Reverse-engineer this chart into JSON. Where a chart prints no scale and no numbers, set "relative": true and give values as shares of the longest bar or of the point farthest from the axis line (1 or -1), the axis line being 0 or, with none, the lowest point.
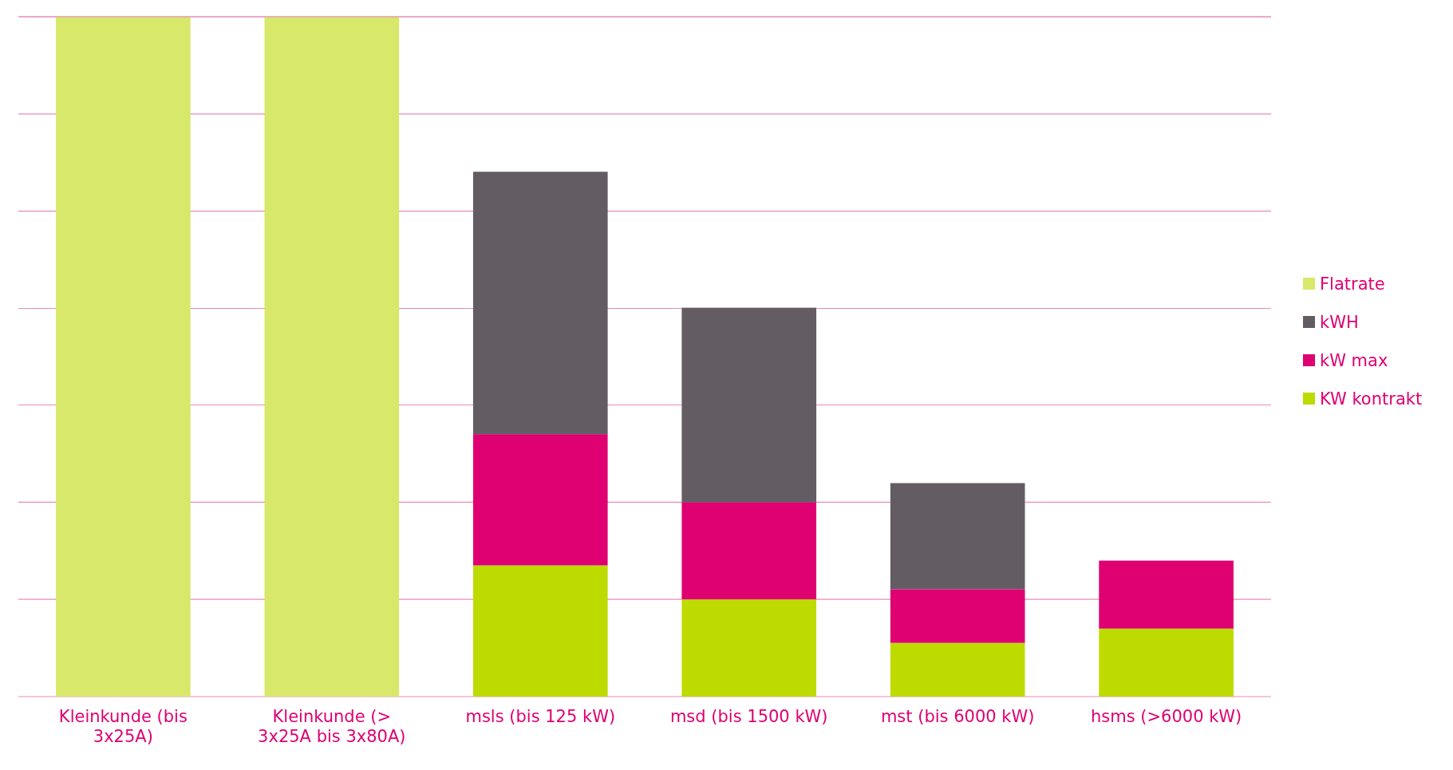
{
  "chart_data": {
    "type": "bar",
    "stacked": true,
    "relative": true,
    "legend": "right",
    "ref_lines": [
      {
        "axis": "y",
        "value": 0.143,
        "color": "#e98bb8"
      },
      {
        "axis": "y",
        "value": 0.286,
        "color": "#e98bb8"
      },
      {
        "axis": "y",
        "value": 0.429,
        "color": "#e98bb8"
      },
      {
        "axis": "y",
        "value": 0.571,
        "color": "#e98bb8"
      },
      {
        "axis": "y",
        "value": 0.714,
        "color": "#e98bb8"
      },
      {
        "axis": "y",
        "value": 0.857,
        "color": "#e98bb8"
      },
      {
        "axis": "y",
        "value": 1,
        "color": "#e98bb8"
      }
    ],
    "categories": [
      "Kleinkunde (bis 3x25A)",
      "Kleinkunde (> 3x25A bis 3x80A)",
      "msls (bis 125 kW)",
      "msd (bis 1500 kW)",
      "mst (bis 6000 kW)",
      "hsms (>6000 kW)"
    ],
    "series": [
      {
        "name": "KW kontrakt",
        "color": "#bedb00",
        "values": [
          null,
          null,
          0.193,
          0.143,
          0.079,
          0.1
        ]
      },
      {
        "name": "kW max",
        "color": "#df0072",
        "values": [
          null,
          null,
          0.193,
          0.143,
          0.079,
          0.1
        ]
      },
      {
        "name": "kWH",
        "color": "#635c63",
        "values": [
          null,
          null,
          0.386,
          0.286,
          0.156,
          null
        ]
      },
      {
        "name": "Flatrate",
        "color": "#d7e86a",
        "values": [
          1,
          1,
          null,
          null,
          null,
          null
        ]
      }
    ]
  }
}
